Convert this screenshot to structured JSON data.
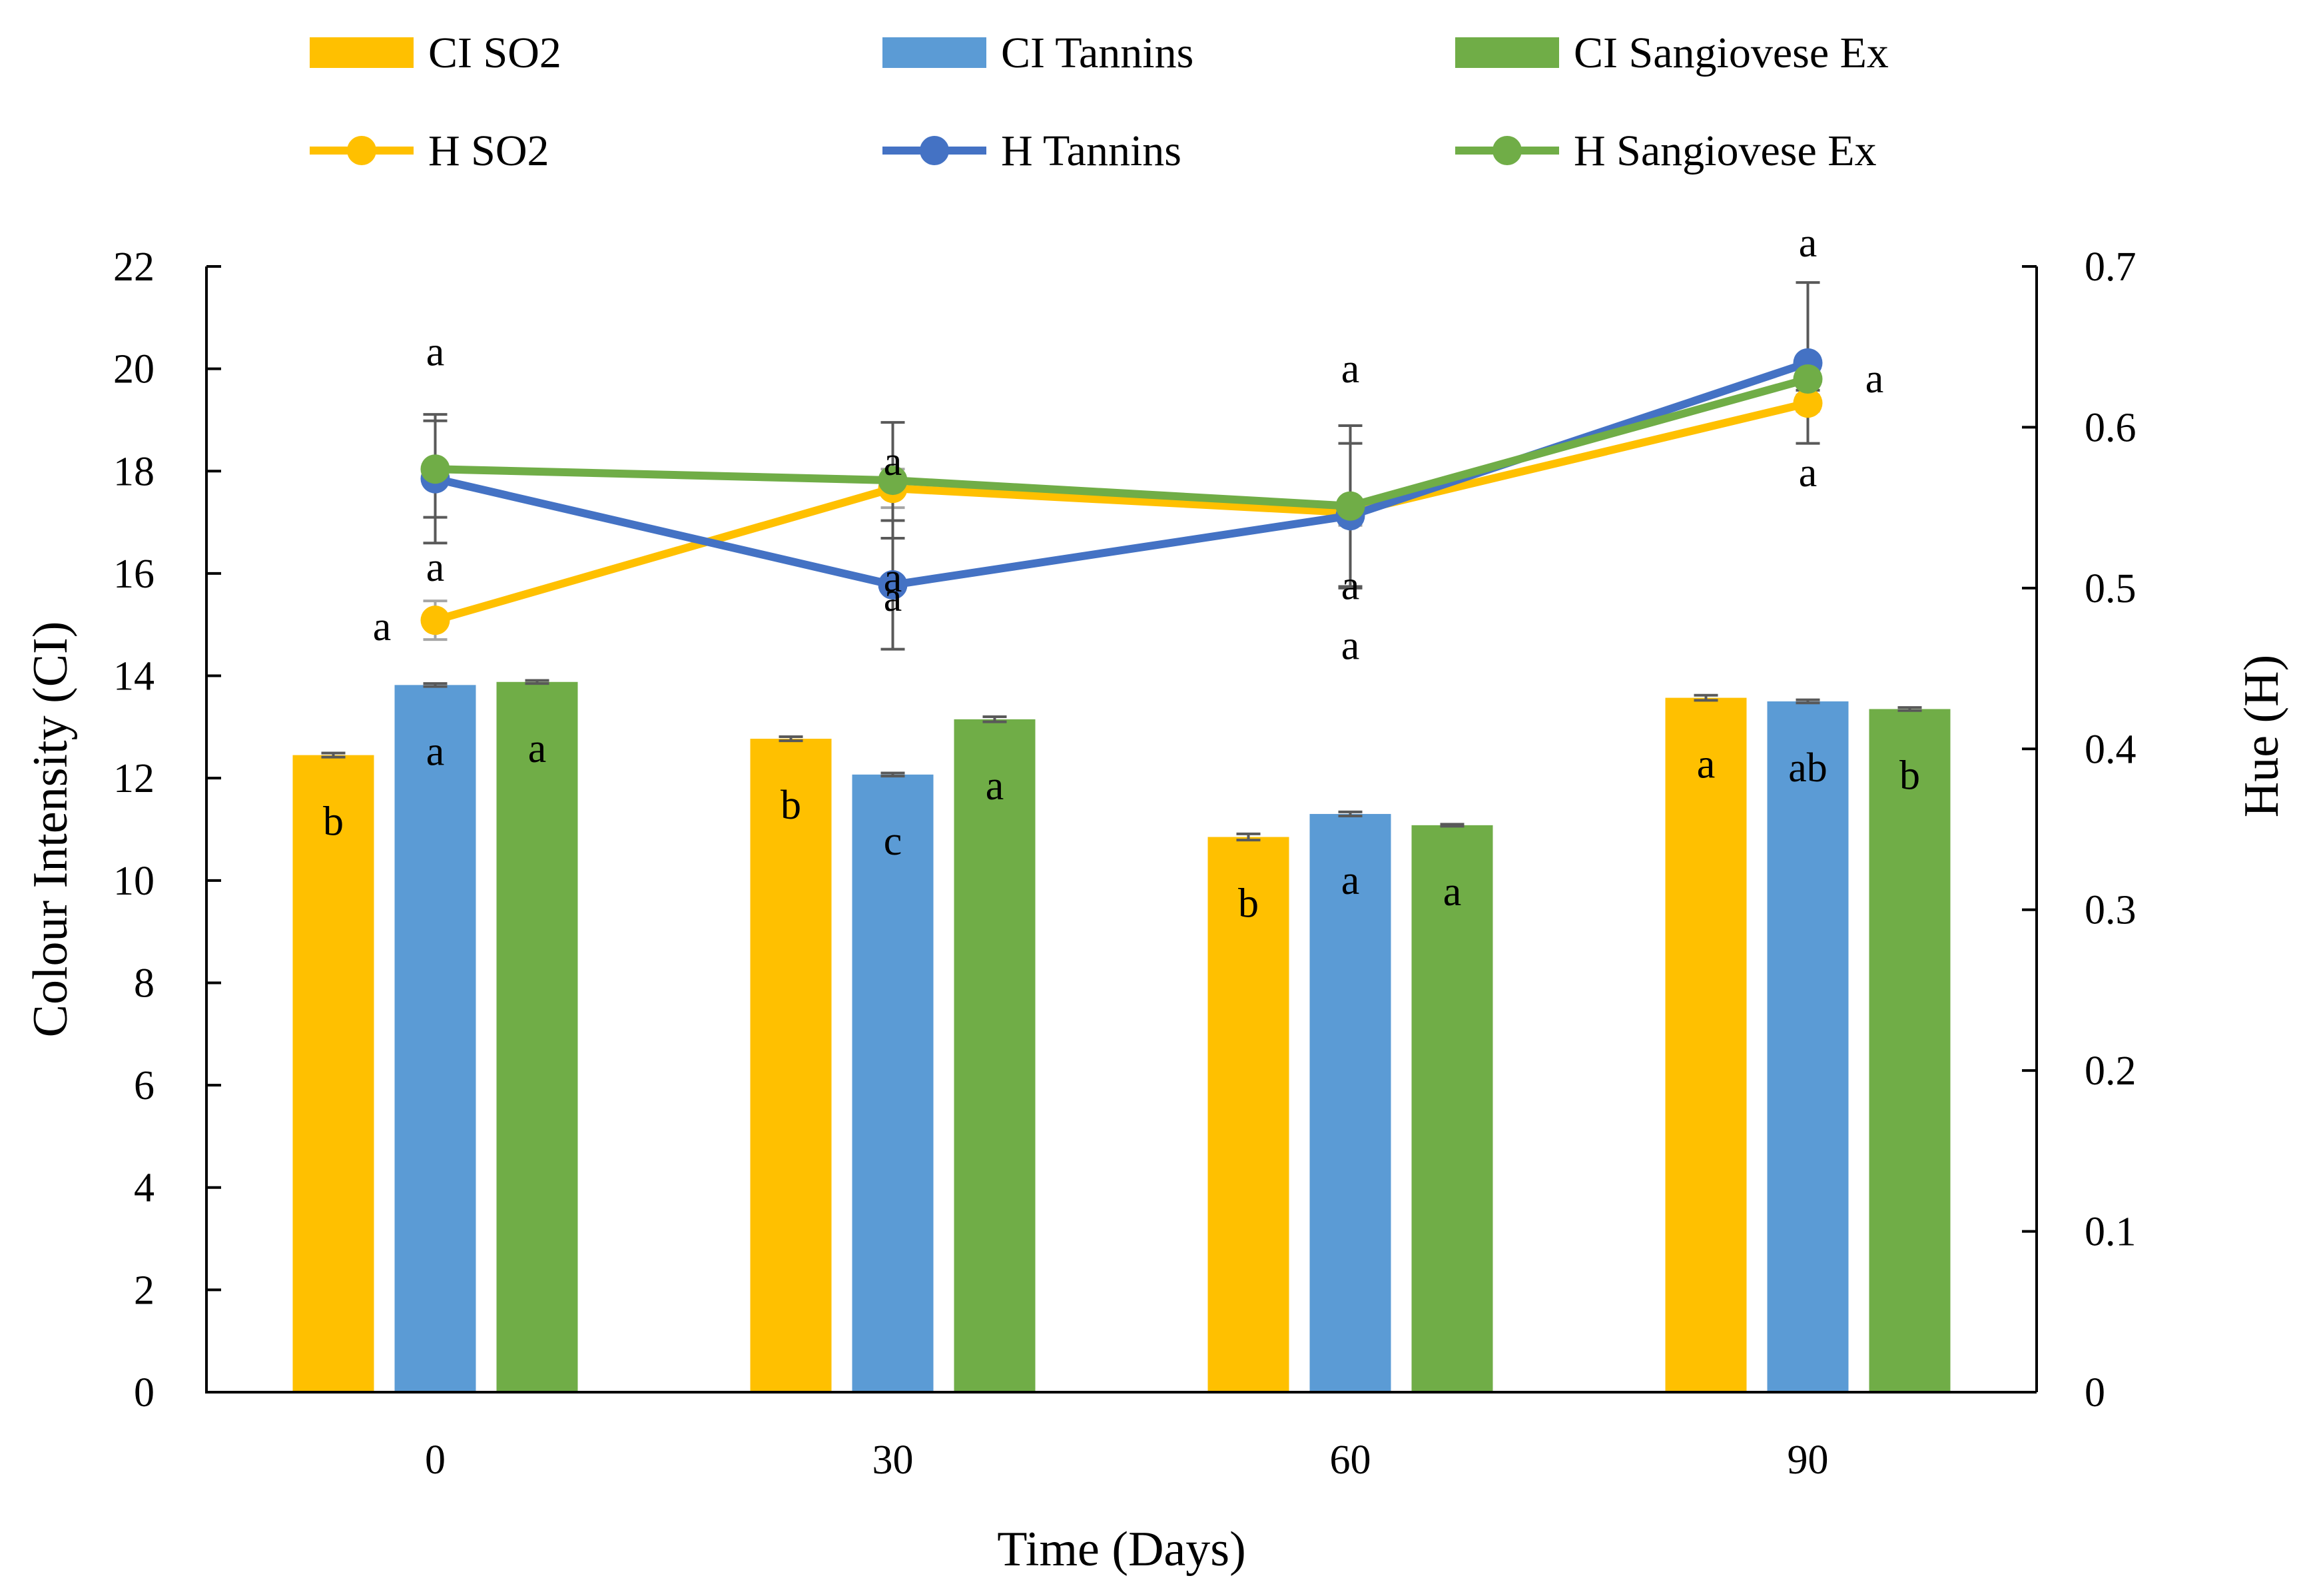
{
  "chart_data": {
    "type": "bar+line",
    "x_label": "Time (Days)",
    "y_left_label": "Colour Intensity (CI)",
    "y_right_label": "Hue (H)",
    "y_left_ticks": [
      "0",
      "2",
      "4",
      "6",
      "8",
      "10",
      "12",
      "14",
      "16",
      "18",
      "20",
      "22"
    ],
    "y_right_ticks": [
      "0",
      "0.1",
      "0.2",
      "0.3",
      "0.4",
      "0.5",
      "0.6",
      "0.7"
    ],
    "ylim_left": [
      0,
      22
    ],
    "ylim_right": [
      0,
      0.7
    ],
    "categories": [
      "0",
      "30",
      "60",
      "90"
    ],
    "bar_series": [
      {
        "name": "CI SO2",
        "color": "#FFC000",
        "values": [
          12.45,
          12.77,
          10.85,
          13.57
        ],
        "errors": [
          0.04,
          0.04,
          0.06,
          0.05
        ],
        "letters": [
          "b",
          "b",
          "b",
          "a"
        ]
      },
      {
        "name": "CI Tannins",
        "color": "#5B9BD5",
        "values": [
          13.82,
          12.07,
          11.3,
          13.5
        ],
        "errors": [
          0.03,
          0.03,
          0.04,
          0.03
        ],
        "letters": [
          "a",
          "c",
          "a",
          "ab"
        ]
      },
      {
        "name": "CI Sangiovese Ex",
        "color": "#70AD47",
        "values": [
          13.88,
          13.15,
          11.08,
          13.35
        ],
        "errors": [
          0.03,
          0.05,
          0.02,
          0.03
        ],
        "letters": [
          "a",
          "a",
          "a",
          "b"
        ]
      }
    ],
    "line_series": [
      {
        "name": "H SO2",
        "color": "#FFC000",
        "values": [
          0.48,
          0.562,
          0.547,
          0.615
        ],
        "errors": [
          0.012,
          0.012,
          0.008,
          0.005
        ],
        "letters": [
          "a",
          "a",
          "a",
          "a"
        ]
      },
      {
        "name": "H Tannins",
        "color": "#4472C4",
        "values": [
          0.568,
          0.502,
          0.545,
          0.64
        ],
        "errors": [
          0.04,
          0.04,
          0.045,
          0.05
        ],
        "letters": [
          "a",
          "a",
          "a",
          "a"
        ]
      },
      {
        "name": "H Sangiovese Ex",
        "color": "#70AD47",
        "values": [
          0.574,
          0.567,
          0.551,
          0.63
        ],
        "errors": [
          0.03,
          0.036,
          0.05,
          0.007
        ],
        "letters": [
          "a",
          "a",
          "a",
          "a"
        ]
      }
    ]
  }
}
